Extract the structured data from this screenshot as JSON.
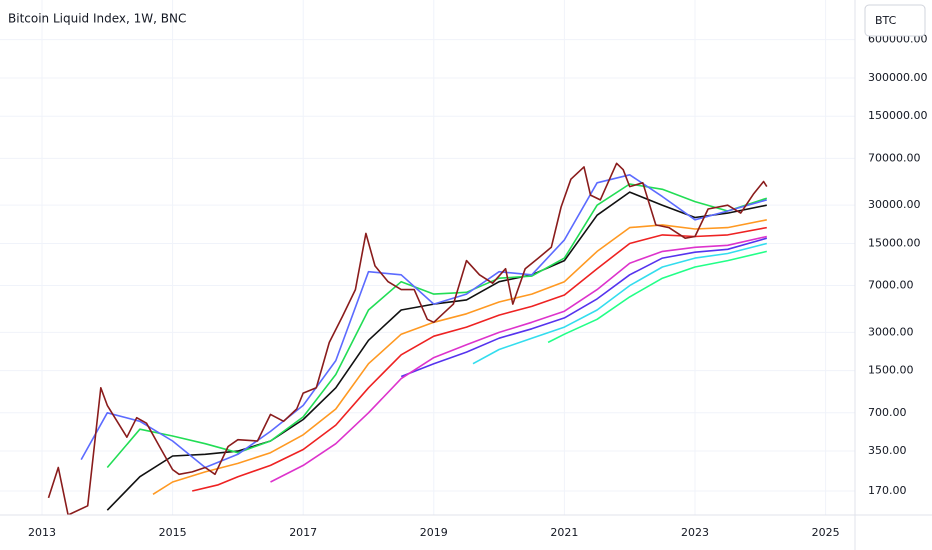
{
  "chart_data": {
    "type": "line",
    "title": "Bitcoin Liquid Index, 1W, BNC",
    "symbol_button": "BTC",
    "log_scale": true,
    "grid": true,
    "xlim": [
      2012.357,
      2025.45
    ],
    "xticks": [
      2013,
      2015,
      2017,
      2019,
      2021,
      2023,
      2025
    ],
    "ylim": [
      110,
      1230000
    ],
    "yticks": [
      {
        "value": 170,
        "label": "170.00"
      },
      {
        "value": 350,
        "label": "350.00"
      },
      {
        "value": 700,
        "label": "700.00"
      },
      {
        "value": 1500,
        "label": "1500.00"
      },
      {
        "value": 3000,
        "label": "3000.00"
      },
      {
        "value": 7000,
        "label": "7000.00"
      },
      {
        "value": 15000,
        "label": "15000.00"
      },
      {
        "value": 30000,
        "label": "30000.00"
      },
      {
        "value": 70000,
        "label": "70000.00"
      },
      {
        "value": 150000,
        "label": "150000.00"
      },
      {
        "value": 300000,
        "label": "300000.00"
      },
      {
        "value": 600000,
        "label": "600000.00"
      }
    ],
    "series": [
      {
        "color": "#22ff88",
        "x": [
          2020.75,
          2021.0,
          2021.5,
          2022.0,
          2022.5,
          2023.0,
          2023.5,
          2024.1
        ],
        "values": [
          2500,
          2900,
          3800,
          5700,
          8000,
          9800,
          11000,
          13000
        ]
      },
      {
        "color": "#33ddee",
        "x": [
          2019.6,
          2020.0,
          2020.5,
          2021.0,
          2021.5,
          2022.0,
          2022.5,
          2023.0,
          2023.5,
          2024.1
        ],
        "values": [
          1700,
          2200,
          2700,
          3300,
          4500,
          7000,
          9800,
          11500,
          12500,
          15000
        ]
      },
      {
        "color": "#5533ee",
        "x": [
          2018.5,
          2019.0,
          2019.5,
          2020.0,
          2020.5,
          2021.0,
          2021.5,
          2022.0,
          2022.5,
          2023.0,
          2023.5,
          2024.1
        ],
        "values": [
          1350,
          1700,
          2100,
          2700,
          3200,
          3900,
          5500,
          8500,
          11500,
          12800,
          13500,
          16500
        ]
      },
      {
        "color": "#dd33cc",
        "x": [
          2016.5,
          2017.0,
          2017.5,
          2018.0,
          2018.5,
          2019.0,
          2019.5,
          2020.0,
          2020.5,
          2021.0,
          2021.5,
          2022.0,
          2022.5,
          2023.0,
          2023.5,
          2024.1
        ],
        "values": [
          200,
          270,
          400,
          700,
          1300,
          1900,
          2400,
          3000,
          3600,
          4400,
          6500,
          10500,
          13000,
          14000,
          14500,
          17000
        ]
      },
      {
        "color": "#ee2222",
        "x": [
          2015.3,
          2015.7,
          2016.0,
          2016.5,
          2017.0,
          2017.5,
          2018.0,
          2018.5,
          2019.0,
          2019.5,
          2020.0,
          2020.5,
          2021.0,
          2021.5,
          2022.0,
          2022.5,
          2023.0,
          2023.5,
          2024.1
        ],
        "values": [
          170,
          190,
          220,
          270,
          360,
          560,
          1100,
          2000,
          2800,
          3300,
          4100,
          4800,
          5900,
          9500,
          15000,
          17500,
          17000,
          17500,
          20000
        ]
      },
      {
        "color": "#ff9922",
        "x": [
          2014.7,
          2015.0,
          2015.5,
          2016.0,
          2016.5,
          2017.0,
          2017.5,
          2018.0,
          2018.5,
          2019.0,
          2019.5,
          2020.0,
          2020.5,
          2021.0,
          2021.5,
          2022.0,
          2022.5,
          2023.0,
          2023.5,
          2024.1
        ],
        "values": [
          160,
          200,
          240,
          280,
          340,
          470,
          750,
          1700,
          2900,
          3600,
          4200,
          5200,
          6000,
          7500,
          13000,
          20000,
          21000,
          19500,
          20000,
          23000
        ]
      },
      {
        "color": "#111111",
        "x": [
          2014.0,
          2014.5,
          2015.0,
          2015.5,
          2016.0,
          2016.5,
          2017.0,
          2017.5,
          2018.0,
          2018.5,
          2019.0,
          2019.5,
          2020.0,
          2020.5,
          2021.0,
          2021.5,
          2022.0,
          2022.5,
          2023.0,
          2023.5,
          2024.1
        ],
        "values": [
          120,
          220,
          320,
          330,
          350,
          420,
          620,
          1100,
          2600,
          4500,
          5000,
          5400,
          7500,
          8500,
          11000,
          25000,
          38000,
          30000,
          24000,
          26000,
          30000
        ]
      },
      {
        "color": "#22dd55",
        "x": [
          2014.0,
          2014.5,
          2015.0,
          2015.5,
          2016.0,
          2016.5,
          2017.0,
          2017.5,
          2018.0,
          2018.5,
          2019.0,
          2019.5,
          2020.0,
          2020.5,
          2021.0,
          2021.5,
          2022.0,
          2022.5,
          2023.0,
          2023.5,
          2024.1
        ],
        "values": [
          260,
          520,
          460,
          400,
          340,
          420,
          650,
          1400,
          4500,
          7500,
          6000,
          6200,
          8000,
          8300,
          11500,
          30000,
          44000,
          40000,
          32000,
          27000,
          34000
        ]
      },
      {
        "color": "#5c6bff",
        "x": [
          2013.6,
          2014.0,
          2014.5,
          2015.0,
          2015.5,
          2016.0,
          2016.5,
          2017.0,
          2017.5,
          2018.0,
          2018.5,
          2019.0,
          2019.5,
          2020.0,
          2020.5,
          2021.0,
          2021.5,
          2022.0,
          2022.5,
          2023.0,
          2023.5,
          2024.1
        ],
        "values": [
          300,
          700,
          600,
          420,
          260,
          330,
          500,
          800,
          1800,
          9000,
          8500,
          5000,
          6000,
          9000,
          8500,
          16000,
          45000,
          52000,
          35000,
          23000,
          27000,
          33000
        ]
      },
      {
        "color": "#8a1c1c",
        "x": [
          2013.1,
          2013.25,
          2013.4,
          2013.7,
          2013.9,
          2014.0,
          2014.15,
          2014.3,
          2014.45,
          2014.6,
          2014.8,
          2015.0,
          2015.1,
          2015.3,
          2015.5,
          2015.65,
          2015.85,
          2016.0,
          2016.3,
          2016.5,
          2016.7,
          2016.9,
          2017.0,
          2017.2,
          2017.4,
          2017.6,
          2017.8,
          2017.96,
          2018.1,
          2018.3,
          2018.5,
          2018.7,
          2018.9,
          2019.0,
          2019.3,
          2019.5,
          2019.7,
          2019.9,
          2020.1,
          2020.21,
          2020.4,
          2020.6,
          2020.8,
          2020.95,
          2021.1,
          2021.3,
          2021.4,
          2021.55,
          2021.8,
          2021.9,
          2022.0,
          2022.2,
          2022.4,
          2022.6,
          2022.85,
          2023.0,
          2023.2,
          2023.5,
          2023.7,
          2023.9,
          2024.05,
          2024.1
        ],
        "values": [
          150,
          260,
          110,
          130,
          1100,
          800,
          600,
          450,
          640,
          580,
          380,
          250,
          230,
          240,
          260,
          230,
          380,
          430,
          420,
          680,
          600,
          750,
          1000,
          1100,
          2500,
          4000,
          6500,
          18000,
          10000,
          7500,
          6500,
          6500,
          3800,
          3600,
          5000,
          11000,
          8500,
          7300,
          9500,
          5000,
          9500,
          11500,
          14000,
          29000,
          48000,
          60000,
          36000,
          33000,
          64000,
          57000,
          42000,
          45000,
          21000,
          20000,
          16500,
          17000,
          28000,
          30000,
          26000,
          37000,
          46000,
          42000
        ]
      }
    ]
  }
}
